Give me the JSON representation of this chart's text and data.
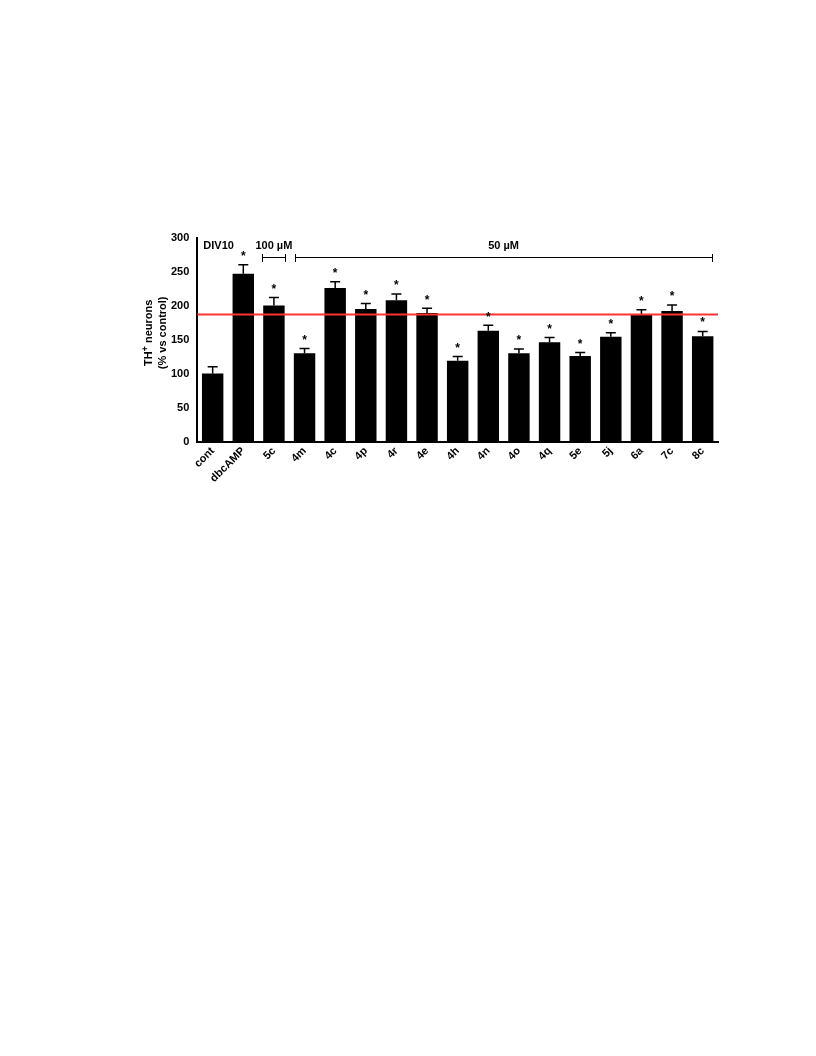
{
  "chart_data": {
    "type": "bar",
    "ylabel": "TH$^{+}$ neurons\n(% vs control)",
    "categories": [
      "cont",
      "dbcAMP",
      "5c",
      "4m",
      "4c",
      "4p",
      "4r",
      "4e",
      "4h",
      "4n",
      "4o",
      "4q",
      "5e",
      "5j",
      "6a",
      "7c",
      "8c"
    ],
    "values": [
      100,
      247,
      200,
      130,
      226,
      195,
      208,
      189,
      119,
      163,
      130,
      146,
      126,
      154,
      187,
      192,
      155
    ],
    "errors": [
      10,
      13,
      12,
      7,
      9,
      8,
      9,
      7,
      6,
      8,
      6,
      7,
      5,
      6,
      7,
      9,
      7
    ],
    "color": "#000000",
    "ylim": [
      0,
      300
    ],
    "yticks": [
      0,
      50,
      100,
      150,
      200,
      250,
      300
    ],
    "ref_lines": [
      {
        "axis": "y",
        "value": 187,
        "color": "#ff3333"
      }
    ],
    "annotations": [
      "DIV10",
      "100 µM",
      "50 µM",
      {
        "text": "*",
        "x": "dbcAMP",
        "y": 260
      },
      {
        "text": "*",
        "x": "5c",
        "y": 212
      },
      {
        "text": "*",
        "x": "4m",
        "y": 137
      },
      {
        "text": "*",
        "x": "4c",
        "y": 235
      },
      {
        "text": "*",
        "x": "4p",
        "y": 203
      },
      {
        "text": "*",
        "x": "4r",
        "y": 217
      },
      {
        "text": "*",
        "x": "4e",
        "y": 196
      },
      {
        "text": "*",
        "x": "4h",
        "y": 125
      },
      {
        "text": "*",
        "x": "4n",
        "y": 171
      },
      {
        "text": "*",
        "x": "4o",
        "y": 136
      },
      {
        "text": "*",
        "x": "4q",
        "y": 153
      },
      {
        "text": "*",
        "x": "5e",
        "y": 131
      },
      {
        "text": "*",
        "x": "5j",
        "y": 160
      },
      {
        "text": "*",
        "x": "6a",
        "y": 194
      },
      {
        "text": "*",
        "x": "7c",
        "y": 201
      },
      {
        "text": "*",
        "x": "8c",
        "y": 163
      }
    ],
    "grid": false,
    "legend": false
  }
}
